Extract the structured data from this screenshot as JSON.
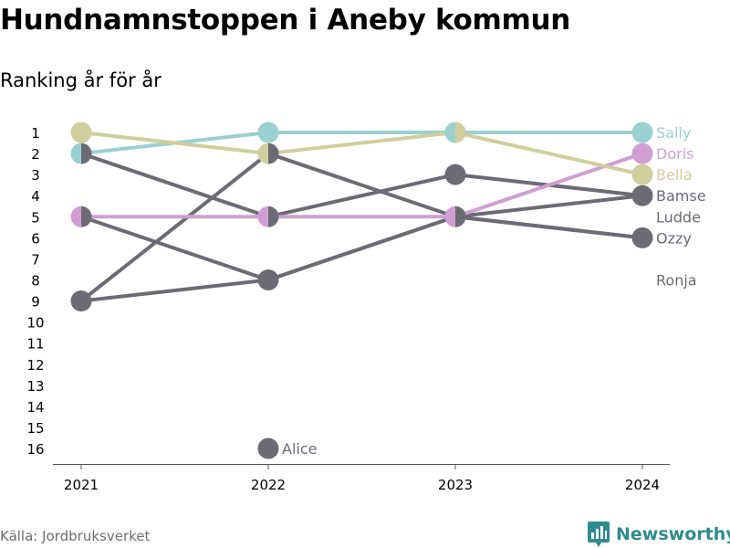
{
  "title": "Hundnamnstoppen i Aneby kommun",
  "subtitle": "Ranking år för år",
  "footer": {
    "source": "Källa: Jordbruksverket",
    "brand": "Newsworthy"
  },
  "colors": {
    "grey": "#6c6b74",
    "sally": "#9ad0cf",
    "doris": "#cf9fd4",
    "bella": "#cfcf9e",
    "axis": "#555555",
    "brand": "#2f8b8e"
  },
  "chart_data": {
    "type": "line",
    "x": [
      "2021",
      "2022",
      "2023",
      "2024"
    ],
    "y_ticks": [
      1,
      2,
      3,
      4,
      5,
      6,
      7,
      8,
      9,
      10,
      11,
      12,
      13,
      14,
      15,
      16
    ],
    "ylim": [
      1,
      16
    ],
    "y_reversed": true,
    "grid": false,
    "series": [
      {
        "name": "Sally",
        "color": "#9ad0cf",
        "ranks": [
          2,
          1,
          1,
          1
        ]
      },
      {
        "name": "Doris",
        "color": "#cf9fd4",
        "ranks": [
          5,
          5,
          5,
          2
        ]
      },
      {
        "name": "Bella",
        "color": "#cfcf9e",
        "ranks": [
          1,
          2,
          1,
          3
        ]
      },
      {
        "name": "Bamse",
        "color": "#6c6b74",
        "ranks": [
          9,
          2,
          5,
          4
        ]
      },
      {
        "name": "Ludde",
        "color": "#6c6b74",
        "ranks": [
          2,
          5,
          3,
          4
        ]
      },
      {
        "name": "Ozzy",
        "color": "#6c6b74",
        "ranks": [
          5,
          8,
          5,
          6
        ]
      },
      {
        "name": "Alice",
        "color": "#6c6b74",
        "ranks": [
          null,
          16,
          null,
          null
        ]
      },
      {
        "name": "Ronja",
        "color": "#6c6b74",
        "ranks": [
          9,
          8,
          5,
          6
        ]
      }
    ],
    "annotations": [
      "Alice"
    ]
  }
}
